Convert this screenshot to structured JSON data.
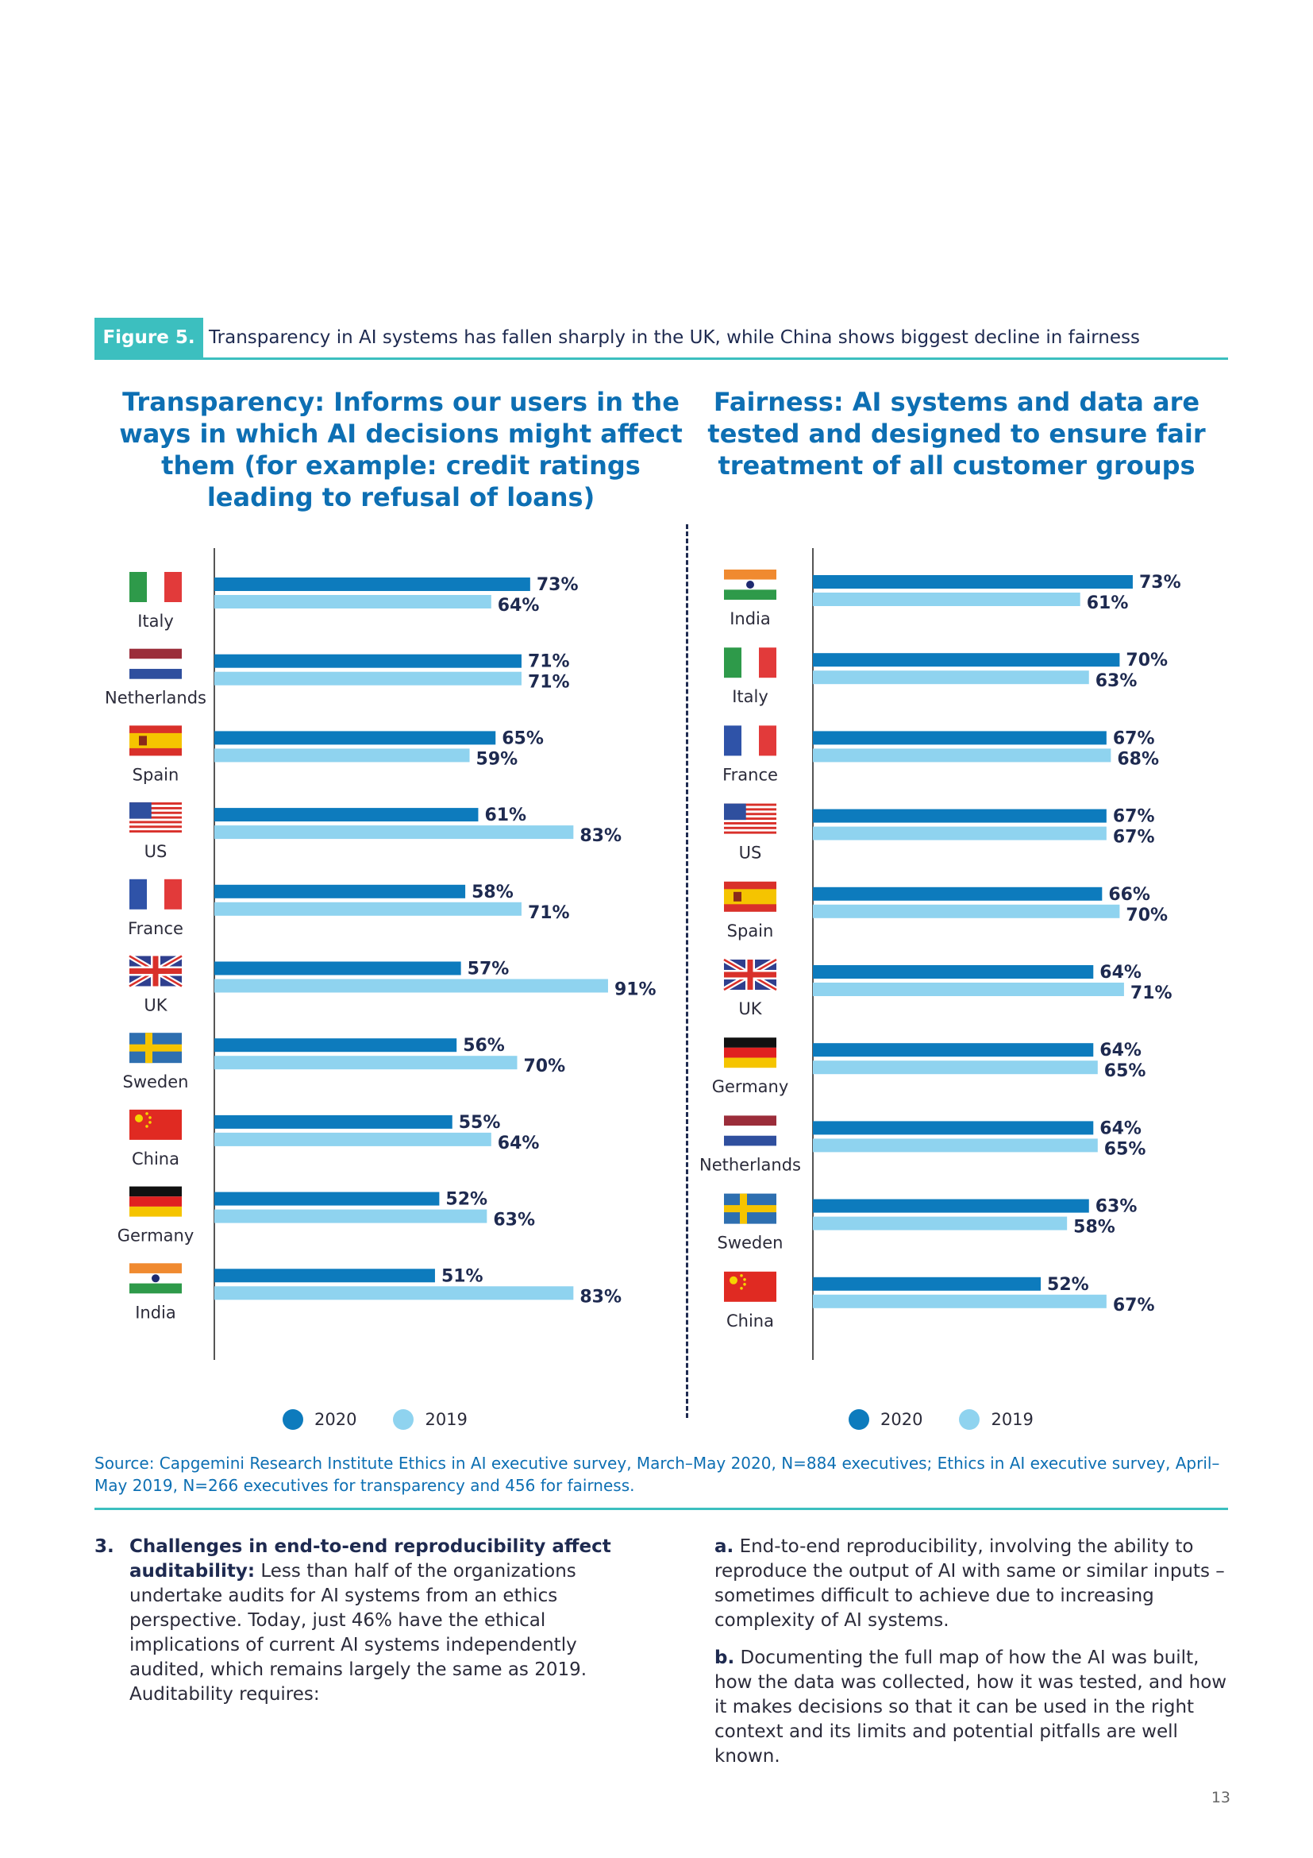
{
  "figure": {
    "tag": "Figure 5.",
    "title": "Transparency in AI systems has fallen sharply in the UK, while China shows biggest decline in fairness"
  },
  "chart_data": [
    {
      "type": "bar",
      "orientation": "horizontal",
      "title": "Transparency: Informs our users in the ways in which AI decisions might affect them (for example: credit ratings leading to refusal of loans)",
      "categories": [
        "Italy",
        "Netherlands",
        "Spain",
        "US",
        "France",
        "UK",
        "Sweden",
        "China",
        "Germany",
        "India"
      ],
      "series": [
        {
          "name": "2020",
          "color": "#0d7bbd",
          "values": [
            73,
            71,
            65,
            61,
            58,
            57,
            56,
            55,
            52,
            51
          ]
        },
        {
          "name": "2019",
          "color": "#8fd3ef",
          "values": [
            64,
            71,
            59,
            83,
            71,
            91,
            70,
            64,
            63,
            83
          ]
        }
      ],
      "xlim": [
        0,
        100
      ],
      "unit": "%"
    },
    {
      "type": "bar",
      "orientation": "horizontal",
      "title": "Fairness: AI systems and data are tested and designed to ensure fair treatment of all customer groups",
      "categories": [
        "India",
        "Italy",
        "France",
        "US",
        "Spain",
        "UK",
        "Germany",
        "Netherlands",
        "Sweden",
        "China"
      ],
      "series": [
        {
          "name": "2020",
          "color": "#0d7bbd",
          "values": [
            73,
            70,
            67,
            67,
            66,
            64,
            64,
            64,
            63,
            52
          ]
        },
        {
          "name": "2019",
          "color": "#8fd3ef",
          "values": [
            61,
            63,
            68,
            67,
            70,
            71,
            65,
            65,
            58,
            67
          ]
        }
      ],
      "xlim": [
        0,
        100
      ],
      "unit": "%"
    }
  ],
  "legend": {
    "label_2020": "2020",
    "label_2019": "2019",
    "color_2020": "#0d7bbd",
    "color_2019": "#8fd3ef"
  },
  "source": "Source: Capgemini Research Institute Ethics in AI executive survey, March–May 2020, N=884 executives; Ethics in AI executive survey, April–May 2019, N=266 executives for transparency and 456 for fairness.",
  "body": {
    "left_number": "3.",
    "left_heading": "Challenges in end-to-end reproducibility affect auditability:",
    "left_text": " Less than half of the organizations undertake audits for AI systems from an ethics perspective. Today, just 46% have the ethical implications of current AI systems independently audited, which remains largely the same as 2019. Auditability requires:",
    "a_label": "a.",
    "a_text": " End-to-end reproducibility, involving the ability to reproduce the output of AI with same or similar inputs – sometimes difficult to achieve due to increasing complexity of AI systems.",
    "b_label": "b.",
    "b_text": " Documenting the full map of how the AI was built, how the data was collected, how it was tested, and how it makes decisions so that it can be used in the right context and its limits and potential pitfalls are well known."
  },
  "page_number": "13"
}
